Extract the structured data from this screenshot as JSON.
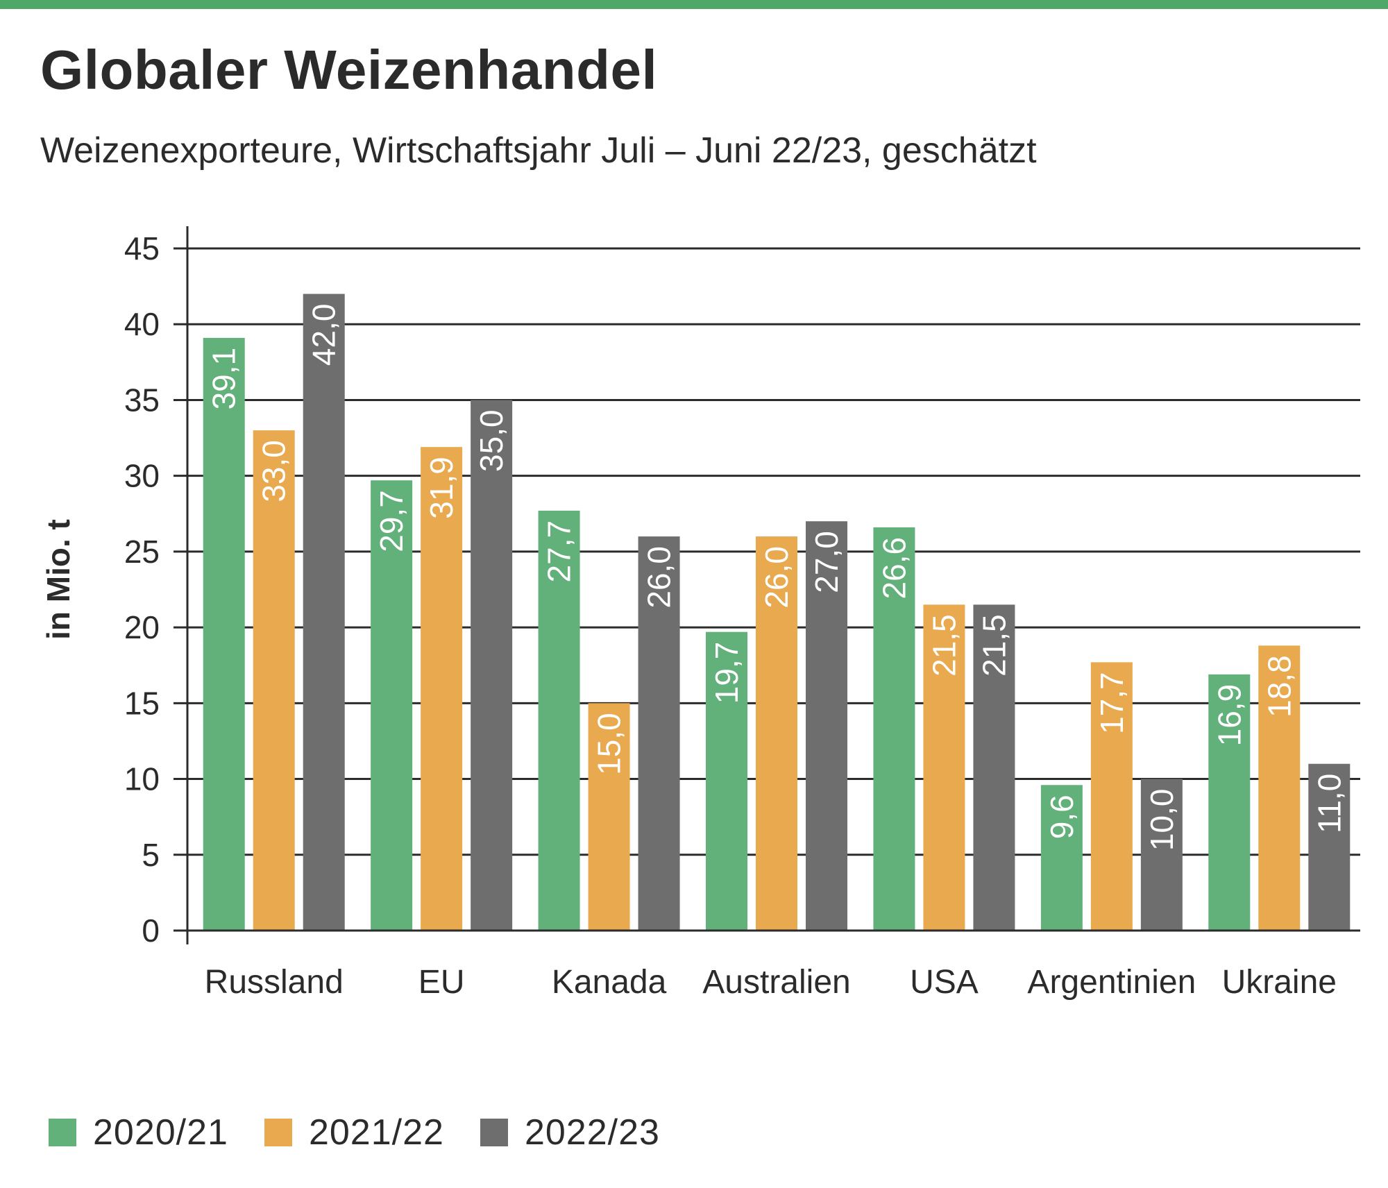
{
  "page": {
    "title": "Globaler Weizenhandel",
    "subtitle": "Weizenexporteure, Wirtschaftsjahr Juli – Juni 22/23, geschätzt",
    "accent_color": "#4fa867"
  },
  "chart_data": {
    "type": "bar",
    "title": "Globaler Weizenhandel",
    "subtitle": "Weizenexporteure, Wirtschaftsjahr Juli – Juni 22/23, geschätzt",
    "xlabel": "",
    "ylabel": "in Mio. t",
    "ylim": [
      0,
      45
    ],
    "yticks": [
      0,
      5,
      10,
      15,
      20,
      25,
      30,
      35,
      40,
      45
    ],
    "grid": true,
    "legend_position": "bottom-left",
    "categories": [
      "Russland",
      "EU",
      "Kanada",
      "Australien",
      "USA",
      "Argentinien",
      "Ukraine"
    ],
    "series": [
      {
        "name": "2020/21",
        "color": "#62b07a",
        "values": [
          39.1,
          29.7,
          27.7,
          19.7,
          26.6,
          9.6,
          16.9
        ],
        "labels": [
          "39,1",
          "29,7",
          "27,7",
          "19,7",
          "26,6",
          "9,6",
          "16,9"
        ]
      },
      {
        "name": "2021/22",
        "color": "#e8a94f",
        "values": [
          33.0,
          31.9,
          15.0,
          26.0,
          21.5,
          17.7,
          18.8
        ],
        "labels": [
          "33,0",
          "31,9",
          "15,0",
          "26,0",
          "21,5",
          "17,7",
          "18,8"
        ]
      },
      {
        "name": "2022/23",
        "color": "#6e6e6e",
        "values": [
          42.0,
          35.0,
          26.0,
          27.0,
          21.5,
          10.0,
          11.0
        ],
        "labels": [
          "42,0",
          "35,0",
          "26,0",
          "27,0",
          "21,5",
          "10,0",
          "11,0"
        ]
      }
    ]
  }
}
